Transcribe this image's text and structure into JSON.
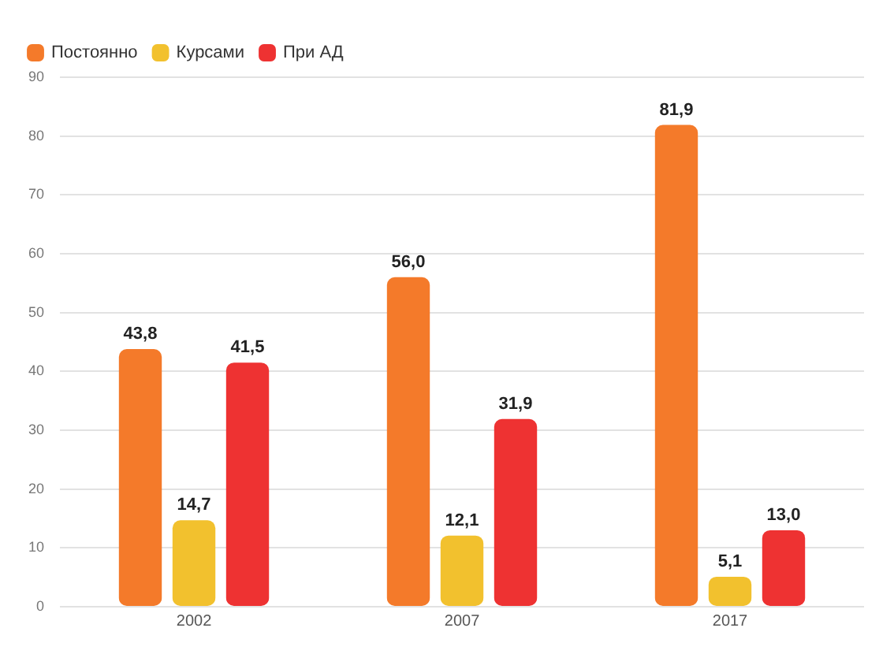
{
  "chart_data": {
    "type": "bar",
    "categories": [
      "2002",
      "2007",
      "2017"
    ],
    "series": [
      {
        "name": "Постоянно",
        "color": "#f47a2a",
        "values": [
          43.8,
          56.0,
          81.9
        ],
        "value_labels": [
          "43,8",
          "56,0",
          "81,9"
        ]
      },
      {
        "name": "Курсами",
        "color": "#f2c12e",
        "values": [
          14.7,
          12.1,
          5.1
        ],
        "value_labels": [
          "14,7",
          "12,1",
          "5,1"
        ]
      },
      {
        "name": "При АД",
        "color": "#ee3232",
        "values": [
          41.5,
          31.9,
          13.0
        ],
        "value_labels": [
          "41,5",
          "31,9",
          "13,0"
        ]
      }
    ],
    "ylim": [
      0,
      90
    ],
    "yticks": [
      0,
      10,
      20,
      30,
      40,
      50,
      60,
      70,
      80,
      90
    ],
    "grid": "y",
    "legend": "top left"
  }
}
